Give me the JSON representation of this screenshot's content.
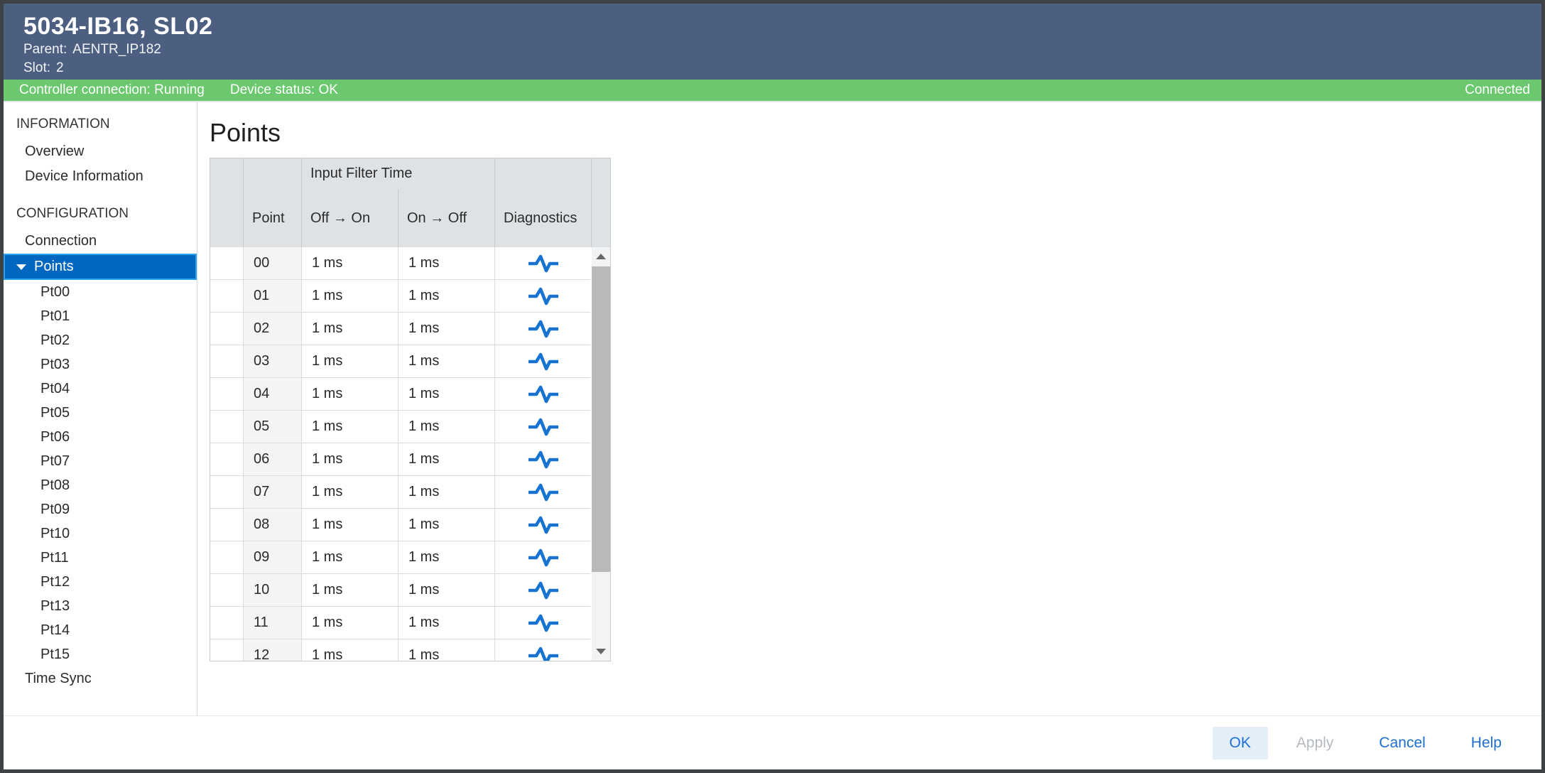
{
  "window": {
    "title": "5034-IB16, SL02",
    "parent_label": "Parent:",
    "parent_value": "AENTR_IP182",
    "slot_label": "Slot:",
    "slot_value": "2"
  },
  "status_bar": {
    "controller_connection": "Controller connection: Running",
    "device_status": "Device status: OK",
    "connection_state": "Connected"
  },
  "sidebar": {
    "sections": [
      {
        "label": "INFORMATION",
        "items": [
          {
            "label": "Overview"
          },
          {
            "label": "Device Information"
          }
        ]
      },
      {
        "label": "CONFIGURATION",
        "items": [
          {
            "label": "Connection"
          },
          {
            "label": "Points",
            "selected": true,
            "expanded": true,
            "children": [
              "Pt00",
              "Pt01",
              "Pt02",
              "Pt03",
              "Pt04",
              "Pt05",
              "Pt06",
              "Pt07",
              "Pt08",
              "Pt09",
              "Pt10",
              "Pt11",
              "Pt12",
              "Pt13",
              "Pt14",
              "Pt15"
            ]
          },
          {
            "label": "Time Sync"
          }
        ]
      }
    ]
  },
  "main": {
    "title": "Points",
    "table": {
      "group_header": "Input Filter Time",
      "columns": {
        "point": "Point",
        "off_on": "Off → On",
        "on_off": "On → Off",
        "diagnostics": "Diagnostics"
      },
      "rows": [
        {
          "point": "00",
          "off_on": "1 ms",
          "on_off": "1 ms",
          "diagnostics_icon": "waveform-icon"
        },
        {
          "point": "01",
          "off_on": "1 ms",
          "on_off": "1 ms",
          "diagnostics_icon": "waveform-icon"
        },
        {
          "point": "02",
          "off_on": "1 ms",
          "on_off": "1 ms",
          "diagnostics_icon": "waveform-icon"
        },
        {
          "point": "03",
          "off_on": "1 ms",
          "on_off": "1 ms",
          "diagnostics_icon": "waveform-icon"
        },
        {
          "point": "04",
          "off_on": "1 ms",
          "on_off": "1 ms",
          "diagnostics_icon": "waveform-icon"
        },
        {
          "point": "05",
          "off_on": "1 ms",
          "on_off": "1 ms",
          "diagnostics_icon": "waveform-icon"
        },
        {
          "point": "06",
          "off_on": "1 ms",
          "on_off": "1 ms",
          "diagnostics_icon": "waveform-icon"
        },
        {
          "point": "07",
          "off_on": "1 ms",
          "on_off": "1 ms",
          "diagnostics_icon": "waveform-icon"
        },
        {
          "point": "08",
          "off_on": "1 ms",
          "on_off": "1 ms",
          "diagnostics_icon": "waveform-icon"
        },
        {
          "point": "09",
          "off_on": "1 ms",
          "on_off": "1 ms",
          "diagnostics_icon": "waveform-icon"
        },
        {
          "point": "10",
          "off_on": "1 ms",
          "on_off": "1 ms",
          "diagnostics_icon": "waveform-icon"
        },
        {
          "point": "11",
          "off_on": "1 ms",
          "on_off": "1 ms",
          "diagnostics_icon": "waveform-icon"
        },
        {
          "point": "12",
          "off_on": "1 ms",
          "on_off": "1 ms",
          "diagnostics_icon": "waveform-icon"
        }
      ]
    }
  },
  "footer": {
    "buttons": [
      {
        "label": "OK",
        "style": "primary"
      },
      {
        "label": "Apply",
        "style": "disabled"
      },
      {
        "label": "Cancel",
        "style": "normal"
      },
      {
        "label": "Help",
        "style": "normal"
      }
    ]
  },
  "colors": {
    "header_bg": "#4d5f80",
    "status_green": "#6cc86e",
    "selection_fill": "#0067c0",
    "selection_border": "#2ba3f3",
    "accent_blue": "#1d6fd1",
    "diagnostics_icon_blue": "#1673d2",
    "disabled_text": "#b4b9bf",
    "table_header_bg": "#dfe2e4"
  }
}
